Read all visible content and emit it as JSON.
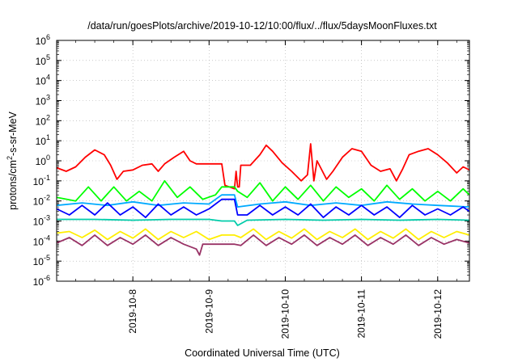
{
  "chart_data": {
    "type": "line",
    "title": "/data/run/goesPlots/archive/2019-10-12/10:00/flux/../flux/5daysMoonFluxes.txt",
    "xlabel": "Coordinated Universal Time (UTC)",
    "ylabel": {
      "pre": "protons/cm",
      "sup": "2",
      "post": "-s-sr-MeV"
    },
    "yscale": "log",
    "ylim_exp": [
      -6,
      6
    ],
    "xlim": [
      "2019-10-07T00:00",
      "2019-10-12T10:00"
    ],
    "x_ticks": [
      "2019-10-8",
      "2019-10-9",
      "2019-10-10",
      "2019-10-11",
      "2019-10-12"
    ],
    "y_ticks": [
      {
        "base": "10",
        "exp": "-6"
      },
      {
        "base": "10",
        "exp": "-5"
      },
      {
        "base": "10",
        "exp": "-4"
      },
      {
        "base": "10",
        "exp": "-3"
      },
      {
        "base": "10",
        "exp": "-2"
      },
      {
        "base": "10",
        "exp": "-1"
      },
      {
        "base": "10",
        "exp": "0"
      },
      {
        "base": "10",
        "exp": "1"
      },
      {
        "base": "10",
        "exp": "2"
      },
      {
        "base": "10",
        "exp": "3"
      },
      {
        "base": "10",
        "exp": "4"
      },
      {
        "base": "10",
        "exp": "5"
      },
      {
        "base": "10",
        "exp": "6"
      }
    ],
    "grid": true,
    "legend": "none",
    "series": [
      {
        "color": "#ff0000",
        "points": [
          [
            "2019-10-07T00:00",
            0.45
          ],
          [
            "2019-10-07T03:00",
            0.3
          ],
          [
            "2019-10-07T06:00",
            0.5
          ],
          [
            "2019-10-07T09:00",
            1.5
          ],
          [
            "2019-10-07T12:00",
            3.5
          ],
          [
            "2019-10-07T15:00",
            2.0
          ],
          [
            "2019-10-07T17:00",
            0.6
          ],
          [
            "2019-10-07T19:00",
            0.12
          ],
          [
            "2019-10-07T21:00",
            0.3
          ],
          [
            "2019-10-08T00:00",
            0.35
          ],
          [
            "2019-10-08T03:00",
            0.6
          ],
          [
            "2019-10-08T06:00",
            0.7
          ],
          [
            "2019-10-08T08:00",
            0.3
          ],
          [
            "2019-10-08T10:00",
            0.7
          ],
          [
            "2019-10-08T13:00",
            1.5
          ],
          [
            "2019-10-08T16:00",
            3.0
          ],
          [
            "2019-10-08T18:00",
            1.0
          ],
          [
            "2019-10-08T20:00",
            0.7
          ],
          [
            "2019-10-09T00:00",
            0.7
          ],
          [
            "2019-10-09T04:00",
            0.7
          ],
          [
            "2019-10-09T05:00",
            0.06
          ],
          [
            "2019-10-09T08:00",
            0.04
          ],
          [
            "2019-10-09T08:30",
            0.3
          ],
          [
            "2019-10-09T09:00",
            0.05
          ],
          [
            "2019-10-09T09:30",
            0.05
          ],
          [
            "2019-10-09T10:00",
            0.6
          ],
          [
            "2019-10-09T13:00",
            0.6
          ],
          [
            "2019-10-09T16:00",
            2.0
          ],
          [
            "2019-10-09T18:00",
            6.0
          ],
          [
            "2019-10-09T20:00",
            3.0
          ],
          [
            "2019-10-09T23:00",
            0.8
          ],
          [
            "2019-10-10T02:00",
            0.3
          ],
          [
            "2019-10-10T05:00",
            0.1
          ],
          [
            "2019-10-10T07:00",
            0.2
          ],
          [
            "2019-10-10T08:00",
            7.0
          ],
          [
            "2019-10-10T09:00",
            0.1
          ],
          [
            "2019-10-10T10:00",
            1.0
          ],
          [
            "2019-10-10T11:00",
            0.5
          ],
          [
            "2019-10-10T13:00",
            0.12
          ],
          [
            "2019-10-10T15:00",
            0.3
          ],
          [
            "2019-10-10T18:00",
            1.5
          ],
          [
            "2019-10-10T21:00",
            4.0
          ],
          [
            "2019-10-11T00:00",
            3.0
          ],
          [
            "2019-10-11T03:00",
            0.6
          ],
          [
            "2019-10-11T06:00",
            0.3
          ],
          [
            "2019-10-11T09:00",
            0.4
          ],
          [
            "2019-10-11T11:00",
            0.1
          ],
          [
            "2019-10-11T13:00",
            0.4
          ],
          [
            "2019-10-11T15:00",
            2.0
          ],
          [
            "2019-10-11T18:00",
            3.0
          ],
          [
            "2019-10-11T21:00",
            4.0
          ],
          [
            "2019-10-12T00:00",
            2.0
          ],
          [
            "2019-10-12T03:00",
            0.8
          ],
          [
            "2019-10-12T06:00",
            0.25
          ],
          [
            "2019-10-12T08:00",
            0.5
          ],
          [
            "2019-10-12T10:00",
            0.35
          ]
        ]
      },
      {
        "color": "#00ff00",
        "points": [
          [
            "2019-10-07T00:00",
            0.015
          ],
          [
            "2019-10-07T06:00",
            0.01
          ],
          [
            "2019-10-07T10:00",
            0.05
          ],
          [
            "2019-10-07T14:00",
            0.01
          ],
          [
            "2019-10-07T18:00",
            0.05
          ],
          [
            "2019-10-07T22:00",
            0.01
          ],
          [
            "2019-10-08T02:00",
            0.03
          ],
          [
            "2019-10-08T06:00",
            0.01
          ],
          [
            "2019-10-08T10:00",
            0.1
          ],
          [
            "2019-10-08T14:00",
            0.015
          ],
          [
            "2019-10-08T18:00",
            0.05
          ],
          [
            "2019-10-08T22:00",
            0.012
          ],
          [
            "2019-10-09T02:00",
            0.02
          ],
          [
            "2019-10-09T04:00",
            0.05
          ],
          [
            "2019-10-09T08:00",
            0.05
          ],
          [
            "2019-10-09T09:00",
            0.03
          ],
          [
            "2019-10-09T12:00",
            0.015
          ],
          [
            "2019-10-09T16:00",
            0.08
          ],
          [
            "2019-10-09T20:00",
            0.01
          ],
          [
            "2019-10-10T00:00",
            0.05
          ],
          [
            "2019-10-10T04:00",
            0.012
          ],
          [
            "2019-10-10T08:00",
            0.06
          ],
          [
            "2019-10-10T12:00",
            0.01
          ],
          [
            "2019-10-10T16:00",
            0.05
          ],
          [
            "2019-10-10T20:00",
            0.015
          ],
          [
            "2019-10-11T00:00",
            0.04
          ],
          [
            "2019-10-11T04:00",
            0.01
          ],
          [
            "2019-10-11T08:00",
            0.06
          ],
          [
            "2019-10-11T12:00",
            0.012
          ],
          [
            "2019-10-11T16:00",
            0.04
          ],
          [
            "2019-10-11T20:00",
            0.01
          ],
          [
            "2019-10-12T00:00",
            0.03
          ],
          [
            "2019-10-12T04:00",
            0.01
          ],
          [
            "2019-10-12T08:00",
            0.04
          ],
          [
            "2019-10-12T10:00",
            0.02
          ]
        ]
      },
      {
        "color": "#00aaff",
        "points": [
          [
            "2019-10-07T00:00",
            0.006
          ],
          [
            "2019-10-07T08:00",
            0.008
          ],
          [
            "2019-10-07T16:00",
            0.006
          ],
          [
            "2019-10-08T00:00",
            0.009
          ],
          [
            "2019-10-08T08:00",
            0.006
          ],
          [
            "2019-10-08T16:00",
            0.008
          ],
          [
            "2019-10-09T00:00",
            0.007
          ],
          [
            "2019-10-09T04:00",
            0.02
          ],
          [
            "2019-10-09T08:00",
            0.02
          ],
          [
            "2019-10-09T09:00",
            0.005
          ],
          [
            "2019-10-09T16:00",
            0.007
          ],
          [
            "2019-10-10T00:00",
            0.009
          ],
          [
            "2019-10-10T08:00",
            0.006
          ],
          [
            "2019-10-10T16:00",
            0.008
          ],
          [
            "2019-10-11T00:00",
            0.006
          ],
          [
            "2019-10-11T08:00",
            0.009
          ],
          [
            "2019-10-11T16:00",
            0.007
          ],
          [
            "2019-10-12T00:00",
            0.006
          ],
          [
            "2019-10-12T10:00",
            0.005
          ]
        ]
      },
      {
        "color": "#0000ff",
        "points": [
          [
            "2019-10-07T00:00",
            0.004
          ],
          [
            "2019-10-07T04:00",
            0.002
          ],
          [
            "2019-10-07T08:00",
            0.006
          ],
          [
            "2019-10-07T12:00",
            0.002
          ],
          [
            "2019-10-07T16:00",
            0.008
          ],
          [
            "2019-10-07T20:00",
            0.002
          ],
          [
            "2019-10-08T00:00",
            0.005
          ],
          [
            "2019-10-08T04:00",
            0.0015
          ],
          [
            "2019-10-08T08:00",
            0.007
          ],
          [
            "2019-10-08T12:00",
            0.002
          ],
          [
            "2019-10-08T16:00",
            0.005
          ],
          [
            "2019-10-08T20:00",
            0.002
          ],
          [
            "2019-10-09T00:00",
            0.004
          ],
          [
            "2019-10-09T04:00",
            0.012
          ],
          [
            "2019-10-09T08:00",
            0.012
          ],
          [
            "2019-10-09T09:00",
            0.002
          ],
          [
            "2019-10-09T12:00",
            0.002
          ],
          [
            "2019-10-09T16:00",
            0.006
          ],
          [
            "2019-10-09T20:00",
            0.002
          ],
          [
            "2019-10-10T00:00",
            0.005
          ],
          [
            "2019-10-10T04:00",
            0.002
          ],
          [
            "2019-10-10T08:00",
            0.007
          ],
          [
            "2019-10-10T12:00",
            0.0015
          ],
          [
            "2019-10-10T16:00",
            0.005
          ],
          [
            "2019-10-10T20:00",
            0.002
          ],
          [
            "2019-10-11T00:00",
            0.006
          ],
          [
            "2019-10-11T04:00",
            0.002
          ],
          [
            "2019-10-11T08:00",
            0.005
          ],
          [
            "2019-10-11T12:00",
            0.0015
          ],
          [
            "2019-10-11T16:00",
            0.006
          ],
          [
            "2019-10-11T20:00",
            0.002
          ],
          [
            "2019-10-12T00:00",
            0.004
          ],
          [
            "2019-10-12T04:00",
            0.002
          ],
          [
            "2019-10-12T08:00",
            0.005
          ],
          [
            "2019-10-12T10:00",
            0.003
          ]
        ]
      },
      {
        "color": "#00ccaa",
        "points": [
          [
            "2019-10-07T00:00",
            0.0012
          ],
          [
            "2019-10-07T12:00",
            0.0012
          ],
          [
            "2019-10-08T00:00",
            0.0011
          ],
          [
            "2019-10-08T12:00",
            0.0012
          ],
          [
            "2019-10-09T00:00",
            0.0012
          ],
          [
            "2019-10-09T04:00",
            0.001
          ],
          [
            "2019-10-09T08:00",
            0.001
          ],
          [
            "2019-10-09T09:00",
            0.0006
          ],
          [
            "2019-10-09T12:00",
            0.0011
          ],
          [
            "2019-10-10T00:00",
            0.0012
          ],
          [
            "2019-10-10T12:00",
            0.0011
          ],
          [
            "2019-10-11T00:00",
            0.0012
          ],
          [
            "2019-10-11T12:00",
            0.0011
          ],
          [
            "2019-10-12T00:00",
            0.0012
          ],
          [
            "2019-10-12T10:00",
            0.0011
          ]
        ]
      },
      {
        "color": "#ffee00",
        "points": [
          [
            "2019-10-07T00:00",
            0.00025
          ],
          [
            "2019-10-07T04:00",
            0.0003
          ],
          [
            "2019-10-07T08:00",
            0.00015
          ],
          [
            "2019-10-07T12:00",
            0.00035
          ],
          [
            "2019-10-07T16:00",
            0.00012
          ],
          [
            "2019-10-07T20:00",
            0.0003
          ],
          [
            "2019-10-08T00:00",
            0.00014
          ],
          [
            "2019-10-08T04:00",
            0.0004
          ],
          [
            "2019-10-08T08:00",
            0.00012
          ],
          [
            "2019-10-08T12:00",
            0.0003
          ],
          [
            "2019-10-08T16:00",
            0.00015
          ],
          [
            "2019-10-08T20:00",
            0.0003
          ],
          [
            "2019-10-09T00:00",
            0.00012
          ],
          [
            "2019-10-09T04:00",
            0.0002
          ],
          [
            "2019-10-09T08:00",
            0.0002
          ],
          [
            "2019-10-09T10:00",
            0.00015
          ],
          [
            "2019-10-09T14:00",
            0.0004
          ],
          [
            "2019-10-09T18:00",
            0.00012
          ],
          [
            "2019-10-09T22:00",
            0.0003
          ],
          [
            "2019-10-10T02:00",
            0.00014
          ],
          [
            "2019-10-10T06:00",
            0.0004
          ],
          [
            "2019-10-10T10:00",
            0.00012
          ],
          [
            "2019-10-10T14:00",
            0.0003
          ],
          [
            "2019-10-10T18:00",
            0.00015
          ],
          [
            "2019-10-10T22:00",
            0.0004
          ],
          [
            "2019-10-11T02:00",
            0.00012
          ],
          [
            "2019-10-11T06:00",
            0.0003
          ],
          [
            "2019-10-11T10:00",
            0.00014
          ],
          [
            "2019-10-11T14:00",
            0.0004
          ],
          [
            "2019-10-11T18:00",
            0.00012
          ],
          [
            "2019-10-11T22:00",
            0.0003
          ],
          [
            "2019-10-12T02:00",
            0.00015
          ],
          [
            "2019-10-12T06:00",
            0.0003
          ],
          [
            "2019-10-12T10:00",
            0.0002
          ]
        ]
      },
      {
        "color": "#993366",
        "points": [
          [
            "2019-10-07T00:00",
            8e-05
          ],
          [
            "2019-10-07T04:00",
            0.00015
          ],
          [
            "2019-10-07T08:00",
            6e-05
          ],
          [
            "2019-10-07T12:00",
            0.0002
          ],
          [
            "2019-10-07T16:00",
            6e-05
          ],
          [
            "2019-10-07T20:00",
            0.00015
          ],
          [
            "2019-10-08T00:00",
            7e-05
          ],
          [
            "2019-10-08T04:00",
            0.0002
          ],
          [
            "2019-10-08T08:00",
            6e-05
          ],
          [
            "2019-10-08T12:00",
            0.00015
          ],
          [
            "2019-10-08T16:00",
            7e-05
          ],
          [
            "2019-10-08T20:00",
            4e-05
          ],
          [
            "2019-10-08T21:00",
            2e-05
          ],
          [
            "2019-10-08T22:00",
            7e-05
          ],
          [
            "2019-10-09T02:00",
            7e-05
          ],
          [
            "2019-10-09T08:00",
            7e-05
          ],
          [
            "2019-10-09T10:00",
            6e-05
          ],
          [
            "2019-10-09T14:00",
            0.0002
          ],
          [
            "2019-10-09T18:00",
            6e-05
          ],
          [
            "2019-10-09T22:00",
            0.00015
          ],
          [
            "2019-10-10T02:00",
            7e-05
          ],
          [
            "2019-10-10T06:00",
            0.0002
          ],
          [
            "2019-10-10T10:00",
            6e-05
          ],
          [
            "2019-10-10T14:00",
            0.00015
          ],
          [
            "2019-10-10T18:00",
            7e-05
          ],
          [
            "2019-10-10T22:00",
            0.0002
          ],
          [
            "2019-10-11T02:00",
            6e-05
          ],
          [
            "2019-10-11T06:00",
            0.00015
          ],
          [
            "2019-10-11T10:00",
            7e-05
          ],
          [
            "2019-10-11T14:00",
            0.0002
          ],
          [
            "2019-10-11T18:00",
            6e-05
          ],
          [
            "2019-10-11T22:00",
            0.00015
          ],
          [
            "2019-10-12T02:00",
            7e-05
          ],
          [
            "2019-10-12T06:00",
            0.00012
          ],
          [
            "2019-10-12T10:00",
            8e-05
          ]
        ]
      }
    ]
  }
}
